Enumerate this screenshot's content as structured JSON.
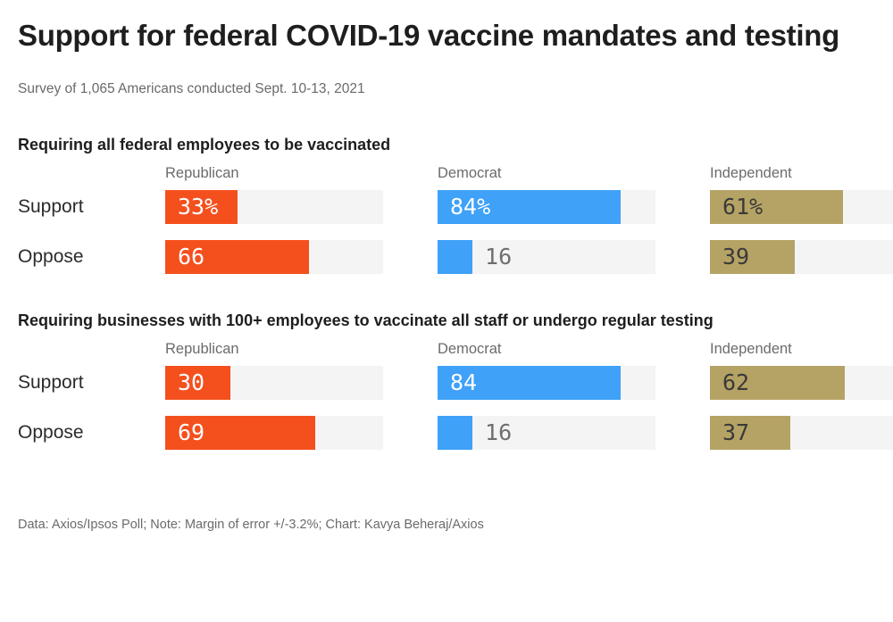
{
  "title": "Support for federal COVID-19 vaccine mandates and testing",
  "subtitle": "Survey of 1,065 Americans conducted Sept. 10-13, 2021",
  "footer": "Data: Axios/Ipsos Poll; Note: Margin of error +/-3.2%; Chart: Kavya Beheraj/Axios",
  "colors": {
    "republican": "#f4501e",
    "democrat": "#3fa1f7",
    "independent": "#b5a365",
    "track": "#f4f4f4",
    "value_inside_light": "#ffffff",
    "value_inside_dark": "#3a3a3a",
    "value_outside": "#6e6e6e",
    "title_text": "#1e1e1e",
    "muted_text": "#6b6b6b"
  },
  "chart_data": [
    {
      "type": "bar",
      "title": "Requiring all federal employees to be vaccinated",
      "categories": [
        "Support",
        "Oppose"
      ],
      "groups": [
        "Republican",
        "Democrat",
        "Independent"
      ],
      "xlim": [
        0,
        100
      ],
      "series": [
        {
          "name": "Republican",
          "color_key": "republican",
          "value_text_style": "inside-light",
          "values": [
            33,
            66
          ],
          "labels": [
            "33%",
            "66"
          ]
        },
        {
          "name": "Democrat",
          "color_key": "democrat",
          "value_text_style": "inside-light",
          "values": [
            84,
            16
          ],
          "labels": [
            "84%",
            "16"
          ]
        },
        {
          "name": "Independent",
          "color_key": "independent",
          "value_text_style": "inside-dark",
          "values": [
            61,
            39
          ],
          "labels": [
            "61%",
            "39"
          ]
        }
      ]
    },
    {
      "type": "bar",
      "title": "Requiring businesses with 100+ employees to vaccinate all staff or undergo regular testing",
      "categories": [
        "Support",
        "Oppose"
      ],
      "groups": [
        "Republican",
        "Democrat",
        "Independent"
      ],
      "xlim": [
        0,
        100
      ],
      "series": [
        {
          "name": "Republican",
          "color_key": "republican",
          "value_text_style": "inside-light",
          "values": [
            30,
            69
          ],
          "labels": [
            "30",
            "69"
          ]
        },
        {
          "name": "Democrat",
          "color_key": "democrat",
          "value_text_style": "inside-light",
          "values": [
            84,
            16
          ],
          "labels": [
            "84",
            "16"
          ]
        },
        {
          "name": "Independent",
          "color_key": "independent",
          "value_text_style": "inside-dark",
          "values": [
            62,
            37
          ],
          "labels": [
            "62",
            "37"
          ]
        }
      ]
    }
  ]
}
